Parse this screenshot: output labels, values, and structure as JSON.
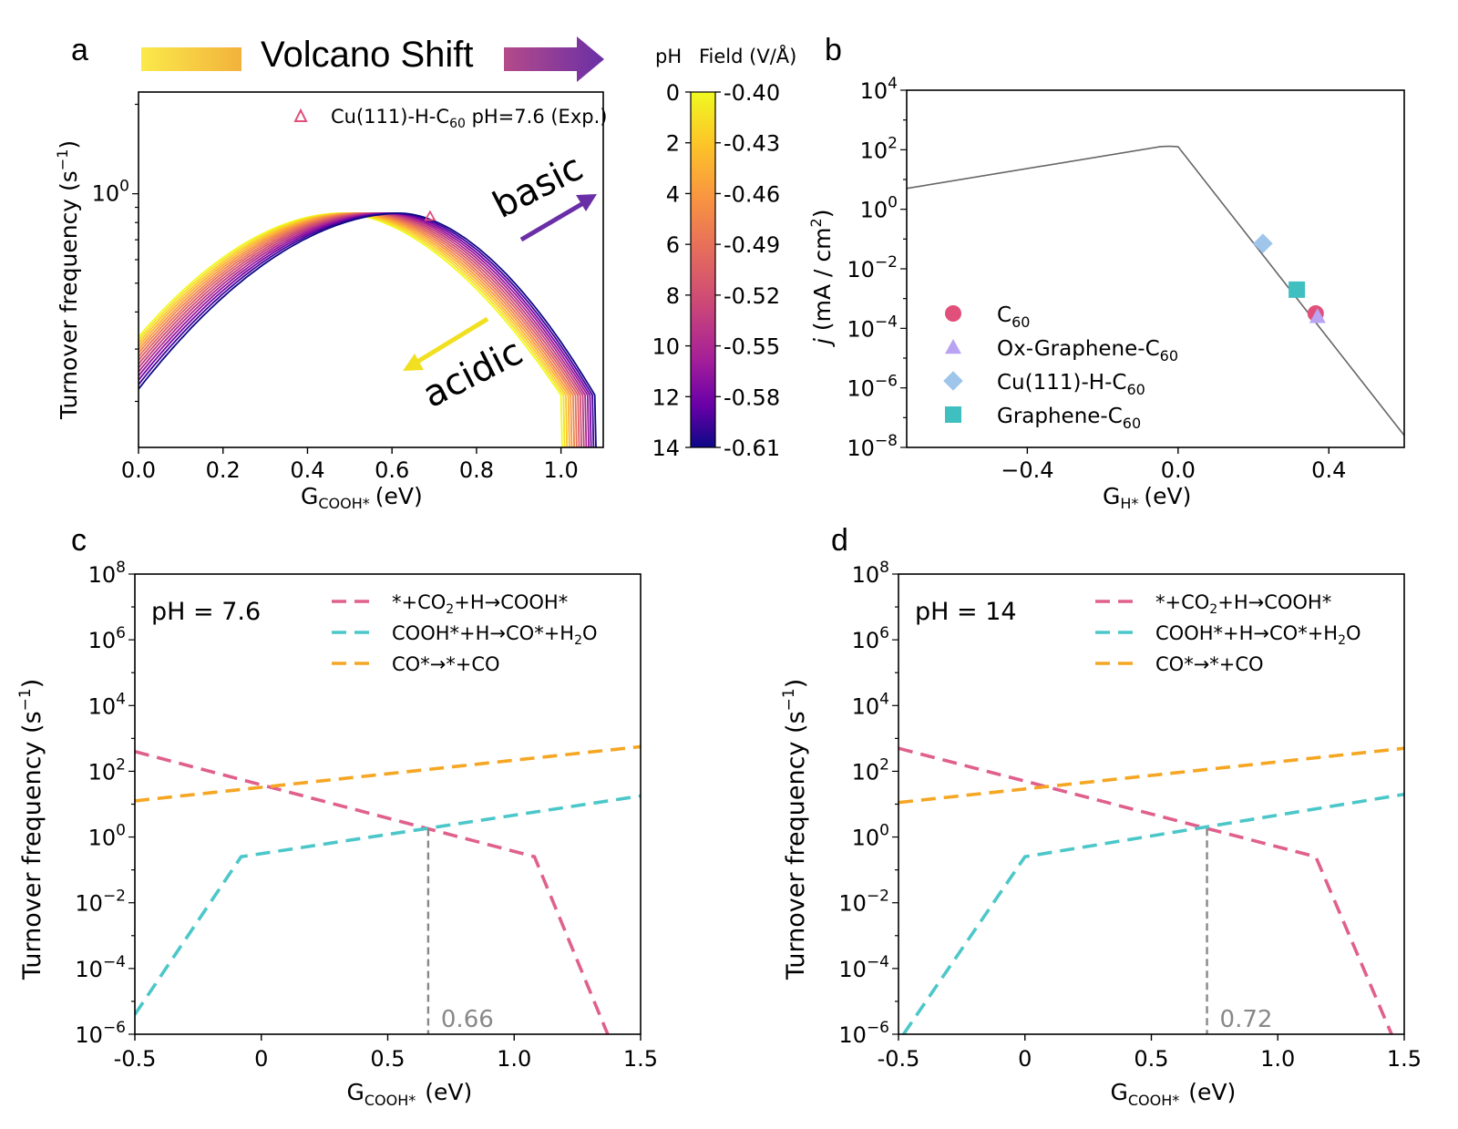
{
  "panel_letters": {
    "a": "a",
    "b": "b",
    "c": "c",
    "d": "d"
  },
  "chart_data": [
    {
      "id": "a",
      "type": "line",
      "title": "Volcano Shift",
      "xlabel_main": "G",
      "xlabel_sub": "COOH*",
      "xlabel_unit": "(eV)",
      "ylabel": "Turnover frequency (s",
      "ylabel_sup": "−1",
      "ylabel_end": ")",
      "x_ticks": [
        "0.0",
        "0.2",
        "0.4",
        "0.6",
        "0.8",
        "1.0"
      ],
      "y_ticks": [
        {
          "base": "10",
          "exp": "0",
          "value": 1
        }
      ],
      "xlim": [
        0,
        1.1
      ],
      "ylim_log": [
        0.14,
        2.2
      ],
      "series_count": 15,
      "annotations": {
        "basic": "basic",
        "acidic": "acidic"
      },
      "marker": {
        "label_pre": "Cu(111)-H-C",
        "label_sub": "60",
        "label_post": " pH=7.6 (Exp.)",
        "x": 0.69,
        "y": 0.84,
        "color": "#e0507a"
      },
      "colorbar": {
        "header_ph": "pH",
        "header_field": "Field (V/Å)",
        "ph_ticks": [
          "0",
          "2",
          "4",
          "6",
          "8",
          "10",
          "12",
          "14"
        ],
        "field_ticks": [
          "-0.40",
          "-0.43",
          "-0.46",
          "-0.49",
          "-0.52",
          "-0.55",
          "-0.58",
          "-0.61"
        ]
      }
    },
    {
      "id": "b",
      "type": "scatter",
      "xlabel_main": "G",
      "xlabel_sub": "H*",
      "xlabel_unit": "(eV)",
      "ylabel_pre": "j",
      "ylabel": " (mA / cm",
      "ylabel_sup": "2",
      "ylabel_end": ")",
      "x_ticks": [
        "−0.4",
        "0.0",
        "0.4"
      ],
      "x_tick_values": [
        -0.4,
        0.0,
        0.4
      ],
      "y_ticks": [
        {
          "base": "10",
          "exp": "4",
          "value": 4
        },
        {
          "base": "10",
          "exp": "2",
          "value": 2
        },
        {
          "base": "10",
          "exp": "0",
          "value": 0
        },
        {
          "base": "10",
          "exp": "−2",
          "value": -2
        },
        {
          "base": "10",
          "exp": "−4",
          "value": -4
        },
        {
          "base": "10",
          "exp": "−6",
          "value": -6
        },
        {
          "base": "10",
          "exp": "−8",
          "value": -8
        }
      ],
      "xlim": [
        -0.72,
        0.6
      ],
      "ylim_log10": [
        -8,
        4
      ],
      "curve_x": [
        -0.72,
        -0.05,
        0.0,
        0.6
      ],
      "curve_log10y": [
        0.7,
        2.1,
        2.1,
        -7.6
      ],
      "points": [
        {
          "name": "C",
          "sub": "60",
          "x": 0.365,
          "log10y": -3.5,
          "shape": "circle",
          "color": "#e0507a"
        },
        {
          "name": "Ox-Graphene-C",
          "sub": "60",
          "x": 0.37,
          "log10y": -3.6,
          "shape": "triangle",
          "color": "#b9a3f2"
        },
        {
          "name": "Cu(111)-H-C",
          "sub": "60",
          "x": 0.225,
          "log10y": -1.15,
          "shape": "diamond",
          "color": "#9fc5ea"
        },
        {
          "name": "Graphene-C",
          "sub": "60",
          "x": 0.315,
          "log10y": -2.7,
          "shape": "square",
          "color": "#3fbfbf"
        }
      ]
    },
    {
      "id": "c",
      "type": "line",
      "annotation": "pH = 7.6",
      "xlabel_main": "G",
      "xlabel_sub": "COOH*",
      "xlabel_unit": "(eV)",
      "ylabel": "Turnover frequency (s",
      "ylabel_sup": "−1",
      "ylabel_end": ")",
      "x_ticks": [
        "-0.5",
        "0",
        "0.5",
        "1.0",
        "1.5"
      ],
      "x_tick_values": [
        -0.5,
        0,
        0.5,
        1.0,
        1.5
      ],
      "y_ticks": [
        {
          "base": "10",
          "exp": "8",
          "value": 8
        },
        {
          "base": "10",
          "exp": "6",
          "value": 6
        },
        {
          "base": "10",
          "exp": "4",
          "value": 4
        },
        {
          "base": "10",
          "exp": "2",
          "value": 2
        },
        {
          "base": "10",
          "exp": "0",
          "value": 0
        },
        {
          "base": "10",
          "exp": "−2",
          "value": -2
        },
        {
          "base": "10",
          "exp": "−4",
          "value": -4
        },
        {
          "base": "10",
          "exp": "−6",
          "value": -6
        }
      ],
      "xlim": [
        -0.5,
        1.5
      ],
      "ylim_log10": [
        -6,
        8
      ],
      "vline_x": 0.66,
      "vline_label": "0.66",
      "series": [
        {
          "name_parts": [
            "*+CO",
            "2",
            "+H→COOH*"
          ],
          "color": "#e0608d",
          "x": [
            -0.5,
            1.08,
            1.37
          ],
          "log10y": [
            2.6,
            -0.6,
            -6.0
          ]
        },
        {
          "name_parts": [
            "COOH*+H→CO*+H",
            "2",
            "O"
          ],
          "color": "#4cc7c9",
          "x": [
            -0.5,
            -0.08,
            1.5
          ],
          "log10y": [
            -5.4,
            -0.6,
            1.25
          ]
        },
        {
          "name_parts": [
            "CO*→*+CO",
            "",
            ""
          ],
          "color": "#f5a623",
          "x": [
            -0.5,
            1.5
          ],
          "log10y": [
            1.1,
            2.75
          ]
        }
      ]
    },
    {
      "id": "d",
      "type": "line",
      "annotation": "pH = 14",
      "xlabel_main": "G",
      "xlabel_sub": "COOH*",
      "xlabel_unit": "(eV)",
      "ylabel": "Turnover frequency (s",
      "ylabel_sup": "−1",
      "ylabel_end": ")",
      "x_ticks": [
        "-0.5",
        "0",
        "0.5",
        "1.0",
        "1.5"
      ],
      "x_tick_values": [
        -0.5,
        0,
        0.5,
        1.0,
        1.5
      ],
      "y_ticks": [
        {
          "base": "10",
          "exp": "8",
          "value": 8
        },
        {
          "base": "10",
          "exp": "6",
          "value": 6
        },
        {
          "base": "10",
          "exp": "4",
          "value": 4
        },
        {
          "base": "10",
          "exp": "2",
          "value": 2
        },
        {
          "base": "10",
          "exp": "0",
          "value": 0
        },
        {
          "base": "10",
          "exp": "−2",
          "value": -2
        },
        {
          "base": "10",
          "exp": "−4",
          "value": -4
        },
        {
          "base": "10",
          "exp": "−6",
          "value": -6
        }
      ],
      "xlim": [
        -0.5,
        1.5
      ],
      "ylim_log10": [
        -6,
        8
      ],
      "vline_x": 0.72,
      "vline_label": "0.72",
      "series": [
        {
          "name_parts": [
            "*+CO",
            "2",
            "+H→COOH*"
          ],
          "color": "#e0608d",
          "x": [
            -0.5,
            1.15,
            1.45
          ],
          "log10y": [
            2.7,
            -0.6,
            -6.0
          ]
        },
        {
          "name_parts": [
            "COOH*+H→CO*+H",
            "2",
            "O"
          ],
          "color": "#4cc7c9",
          "x": [
            -0.48,
            0.0,
            1.5
          ],
          "log10y": [
            -6.0,
            -0.6,
            1.3
          ]
        },
        {
          "name_parts": [
            "CO*→*+CO",
            "",
            ""
          ],
          "color": "#f5a623",
          "x": [
            -0.5,
            1.5
          ],
          "log10y": [
            1.05,
            2.7
          ]
        }
      ]
    }
  ]
}
